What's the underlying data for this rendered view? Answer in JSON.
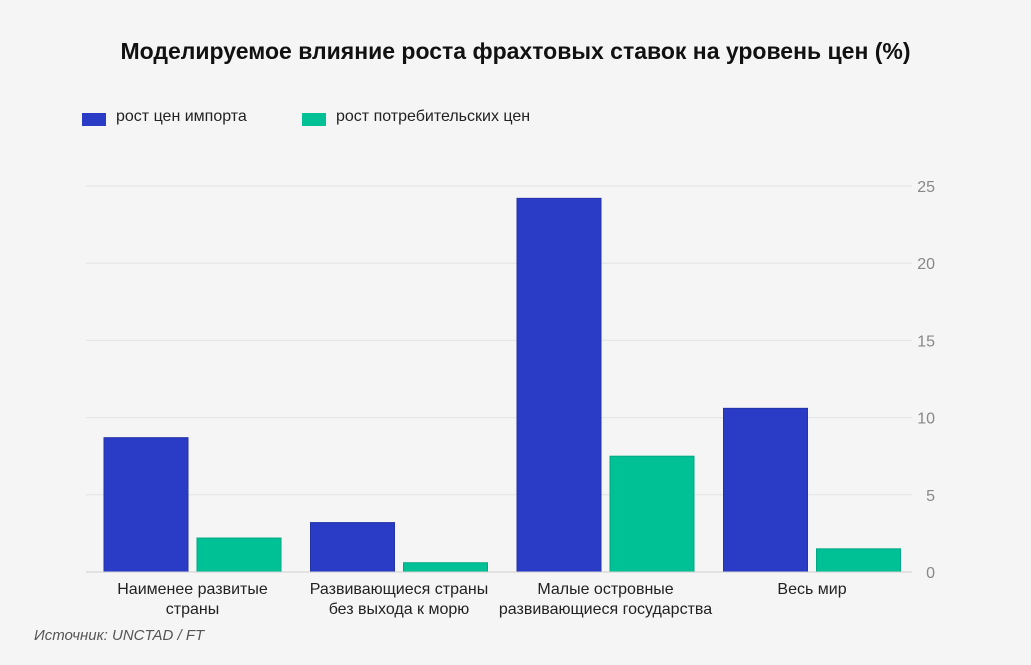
{
  "title": "Моделируемое влияние роста фрахтовых ставок на уровень цен (%)",
  "source": "Источник: UNCTAD / FT",
  "colors": {
    "import": "#2a3bc6",
    "consumer": "#00c096",
    "grid": "#e3e3e3",
    "background": "#f5f5f5"
  },
  "chart_data": {
    "type": "bar",
    "categories": [
      [
        "Наименее развитые",
        "страны"
      ],
      [
        "Развивающиеся страны",
        "без выхода к морю"
      ],
      [
        "Малые островные",
        "развивающиеся государства"
      ],
      [
        "Весь мир"
      ]
    ],
    "series": [
      {
        "name": "рост цен импорта",
        "values": [
          8.7,
          3.2,
          24.2,
          10.6
        ]
      },
      {
        "name": "рост потребительских цен",
        "values": [
          2.2,
          0.6,
          7.5,
          1.5
        ]
      }
    ],
    "ylim": [
      0,
      25
    ],
    "yticks": [
      0,
      5,
      10,
      15,
      20,
      25
    ],
    "y_axis_side": "right",
    "grid": true,
    "legend_position": "top-left"
  }
}
